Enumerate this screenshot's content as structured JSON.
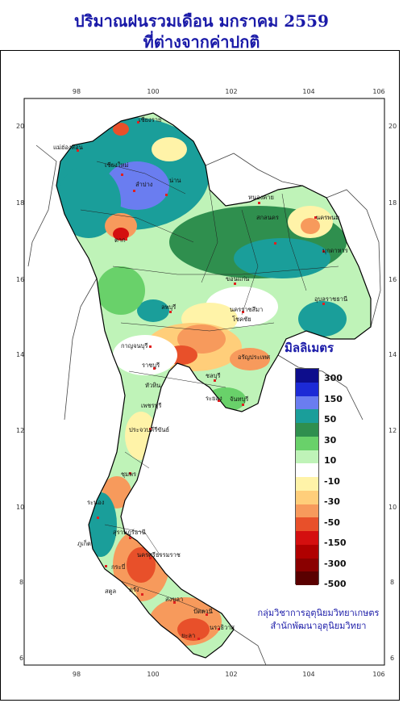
{
  "title": {
    "line1": "ปริมาณฝนรวมเดือน มกราคม 2559",
    "line2": "ที่ต่างจากค่าปกติ"
  },
  "axes": {
    "longitude_ticks": [
      "98",
      "100",
      "102",
      "104",
      "106"
    ],
    "latitude_ticks": [
      "20",
      "18",
      "16",
      "14",
      "12",
      "10",
      "8",
      "6"
    ]
  },
  "legend": {
    "title": "มิลลิเมตร",
    "labels": [
      "300",
      "150",
      "50",
      "30",
      "10",
      "-10",
      "-30",
      "-50",
      "-150",
      "-300",
      "-500"
    ],
    "colors": [
      "#0d0d8c",
      "#1c2ad6",
      "#6a7df0",
      "#1a9e9a",
      "#2f8f4e",
      "#69d16a",
      "#bff3b8",
      "#ffffff",
      "#fff3a8",
      "#ffce7a",
      "#f79a5c",
      "#e8502a",
      "#d40f0f",
      "#b00000",
      "#8a0000",
      "#5a0000"
    ]
  },
  "places": [
    "เชียงราย",
    "แม่ฮ่องสอน",
    "เชียงใหม่",
    "ลำปาง",
    "น่าน",
    "ตาก",
    "หนองคาย",
    "นครพนม",
    "สกลนคร",
    "มุกดาหาร",
    "ขอนแก่น",
    "นครราชสีมา",
    "โชคชัย",
    "อุบลราชธานี",
    "ลพบุรี",
    "กาญจนบุรี",
    "ราชบุรี",
    "ชลบุรี",
    "ระยอง",
    "จันทบุรี",
    "ประจวบคีรีขันธ์",
    "ชุมพร",
    "ระนอง",
    "สุราษฎร์ธานี",
    "นครศรีธรรมราช",
    "กระบี่",
    "ภูเก็ต",
    "ตรัง",
    "สงขลา",
    "ปัตตานี",
    "นราธิวาส",
    "ยะลา",
    "อรัญประเทศ",
    "เพชรบุรี",
    "หัวหิน",
    "สตูล"
  ],
  "credit": {
    "line1": "กลุ่มวิชาการอุตุนิยมวิทยาเกษตร",
    "line2": "สำนักพัฒนาอุตุนิยมวิทยา"
  }
}
